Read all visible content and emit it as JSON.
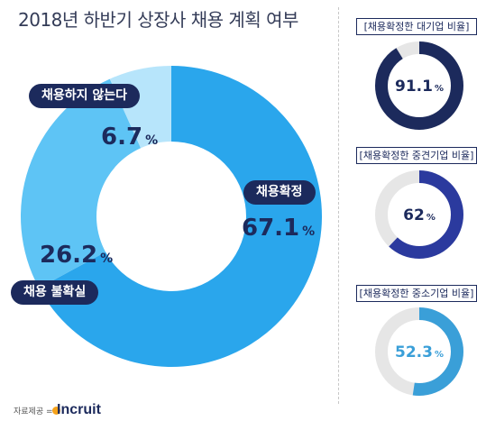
{
  "title": "2018년 하반기 상장사 채용 계획 여부",
  "colors": {
    "navy": "#1c2a5c",
    "confirmed": "#2aa6ec",
    "uncertain": "#5ec4f5",
    "not_hiring": "#b7e5fb",
    "track": "#e6e6e6",
    "mid": "#2b3a9e",
    "small": "#3a9fd8"
  },
  "chart_data": [
    {
      "type": "pie",
      "title": "2018년 하반기 상장사 채용 계획 여부",
      "slices": [
        {
          "label": "채용확정",
          "value": 67.1,
          "display": "67.1",
          "unit": "%",
          "color": "#2aa6ec"
        },
        {
          "label": "채용 불확실",
          "value": 26.2,
          "display": "26.2",
          "unit": "%",
          "color": "#5ec4f5"
        },
        {
          "label": "채용하지 않는다",
          "value": 6.7,
          "display": "6.7",
          "unit": "%",
          "color": "#b7e5fb"
        }
      ]
    },
    {
      "type": "pie",
      "title": "[채용확정한 대기업 비율]",
      "value": 91.1,
      "display": "91.1",
      "unit": "%",
      "color": "#1c2a5c"
    },
    {
      "type": "pie",
      "title": "[채용확정한 중견기업 비율]",
      "value": 62,
      "display": "62",
      "unit": "%",
      "color": "#2b3a9e"
    },
    {
      "type": "pie",
      "title": "[채용확정한 중소기업 비율]",
      "value": 52.3,
      "display": "52.3",
      "unit": "%",
      "color": "#3a9fd8"
    }
  ],
  "source": {
    "label": "자료제공 =",
    "logo": "Incruit"
  }
}
